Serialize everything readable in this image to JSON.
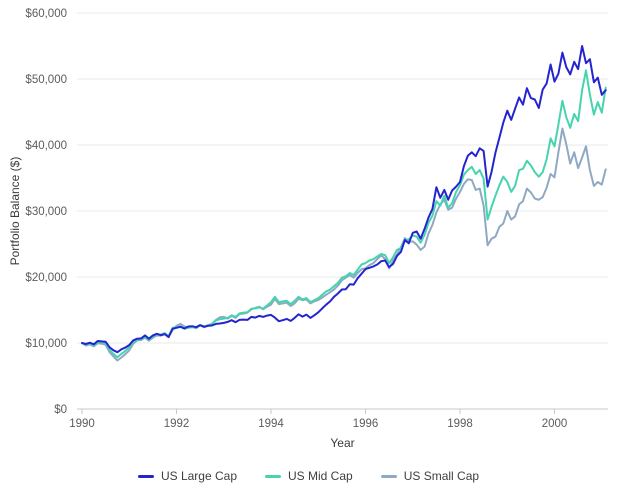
{
  "chart": {
    "title": "",
    "y_axis_title": "Portfolio Balance ($)",
    "x_axis_title": "Year"
  },
  "chart_data": {
    "type": "line",
    "title": "",
    "xlabel": "Year",
    "ylabel": "Portfolio Balance ($)",
    "x_start_year": 1990,
    "x_step_months": 1,
    "x_end_year": 2001.083,
    "xlim": [
      1989.89,
      2001.18
    ],
    "ylim": [
      0,
      60000
    ],
    "grid": "horizontal-only",
    "legend_position": "bottom-center",
    "background_color": "#ffffff",
    "gridline_color": "#e9e9e9",
    "baseline_color": "#c8c8c8",
    "tick_label_color": "#5c5c5c",
    "x_ticks": [
      1990,
      1992,
      1994,
      1996,
      1998,
      2000
    ],
    "y_ticks": [
      {
        "value": 0,
        "label": "$0"
      },
      {
        "value": 10000,
        "label": "$10,000"
      },
      {
        "value": 20000,
        "label": "$20,000"
      },
      {
        "value": 30000,
        "label": "$30,000"
      },
      {
        "value": 40000,
        "label": "$40,000"
      },
      {
        "value": 50000,
        "label": "$50,000"
      },
      {
        "value": 60000,
        "label": "$60,000"
      }
    ],
    "series": [
      {
        "name": "US Large Cap",
        "color": "#2525d0",
        "values": [
          10000,
          9850,
          10050,
          9800,
          10300,
          10250,
          10200,
          9350,
          8900,
          8600,
          9050,
          9300,
          9700,
          10400,
          10650,
          10700,
          11150,
          10650,
          11150,
          11400,
          11200,
          11350,
          10900,
          12150,
          12300,
          12450,
          12200,
          12500,
          12550,
          12400,
          12700,
          12450,
          12600,
          12650,
          12900,
          12950,
          13050,
          13200,
          13450,
          13150,
          13500,
          13550,
          13500,
          13950,
          13850,
          14100,
          13950,
          14150,
          14250,
          13850,
          13300,
          13450,
          13650,
          13350,
          13800,
          14350,
          14000,
          14300,
          13800,
          14200,
          14650,
          15250,
          15800,
          16300,
          17000,
          17500,
          18100,
          18150,
          18900,
          18850,
          19800,
          20500,
          21200,
          21400,
          21600,
          21900,
          22400,
          22500,
          21500,
          22000,
          23200,
          23800,
          25600,
          25100,
          26700,
          26900,
          25800,
          27300,
          29000,
          30300,
          33600,
          32000,
          33200,
          31700,
          33100,
          33700,
          34400,
          36800,
          38400,
          38900,
          38300,
          39500,
          39100,
          33700,
          35900,
          38800,
          41100,
          43400,
          45200,
          43800,
          45500,
          47200,
          46100,
          48600,
          47100,
          46900,
          45600,
          48400,
          49300,
          52200,
          49600,
          50800,
          54000,
          51800,
          50700,
          52600,
          51500,
          55000,
          52400,
          53000,
          49500,
          50200,
          47600,
          48300
        ]
      },
      {
        "name": "US Mid Cap",
        "color": "#46d4ae",
        "values": [
          10000,
          9750,
          9950,
          9650,
          10150,
          10100,
          10000,
          8950,
          8350,
          7850,
          8350,
          8800,
          9350,
          10100,
          10500,
          10550,
          10950,
          10500,
          11000,
          11300,
          11250,
          11500,
          11050,
          12300,
          12400,
          12500,
          12150,
          12300,
          12400,
          12250,
          12750,
          12500,
          12700,
          12900,
          13400,
          13600,
          13700,
          13800,
          14200,
          13950,
          14500,
          14600,
          14650,
          15200,
          15250,
          15400,
          15200,
          15700,
          16200,
          17000,
          16200,
          16300,
          16400,
          15900,
          16400,
          17000,
          16600,
          16800,
          16200,
          16500,
          16800,
          17300,
          17800,
          18100,
          18600,
          19100,
          19900,
          20100,
          20600,
          20300,
          21100,
          21900,
          22100,
          22500,
          22700,
          23100,
          23500,
          23300,
          22100,
          23000,
          24100,
          24400,
          25600,
          25700,
          26300,
          26100,
          25200,
          26400,
          28200,
          29300,
          31500,
          30800,
          32300,
          30500,
          31200,
          32900,
          33900,
          35500,
          36200,
          36700,
          35600,
          36200,
          34900,
          28700,
          30600,
          32300,
          33900,
          35200,
          34400,
          32900,
          33800,
          36200,
          36400,
          37600,
          36900,
          35900,
          35200,
          35900,
          37800,
          41000,
          39800,
          43100,
          46700,
          44200,
          42600,
          44700,
          43600,
          48300,
          51300,
          47600,
          44600,
          46500,
          44900,
          48700
        ]
      },
      {
        "name": "US Small Cap",
        "color": "#8fa9c4",
        "values": [
          10000,
          9600,
          9800,
          9500,
          9950,
          9900,
          9750,
          8600,
          7950,
          7350,
          7800,
          8300,
          8900,
          9900,
          10400,
          10450,
          10800,
          10350,
          10800,
          11150,
          11100,
          11400,
          10950,
          12000,
          12600,
          12900,
          12500,
          12350,
          12450,
          12250,
          12700,
          12400,
          12600,
          12900,
          13500,
          13900,
          13950,
          13700,
          14100,
          13800,
          14400,
          14450,
          14600,
          15100,
          15300,
          15500,
          15100,
          15500,
          15800,
          16700,
          15900,
          16000,
          16100,
          15600,
          16000,
          16700,
          16500,
          16600,
          16000,
          16300,
          16500,
          16900,
          17300,
          17700,
          18100,
          18700,
          19500,
          19900,
          20300,
          19900,
          20600,
          21200,
          21300,
          21800,
          22100,
          22700,
          23300,
          22700,
          21300,
          22500,
          23400,
          24500,
          25900,
          25300,
          25400,
          24900,
          24100,
          24600,
          26600,
          27900,
          29800,
          31000,
          31700,
          30200,
          30500,
          31900,
          32900,
          34100,
          34800,
          34700,
          33200,
          33400,
          30800,
          24800,
          25800,
          26100,
          27600,
          28100,
          30000,
          28700,
          29200,
          31000,
          31500,
          33400,
          32800,
          31900,
          31700,
          32100,
          33500,
          35600,
          35100,
          38900,
          42500,
          40100,
          37200,
          38900,
          36500,
          38100,
          39800,
          36200,
          33800,
          34400,
          34000,
          36300
        ]
      }
    ]
  }
}
